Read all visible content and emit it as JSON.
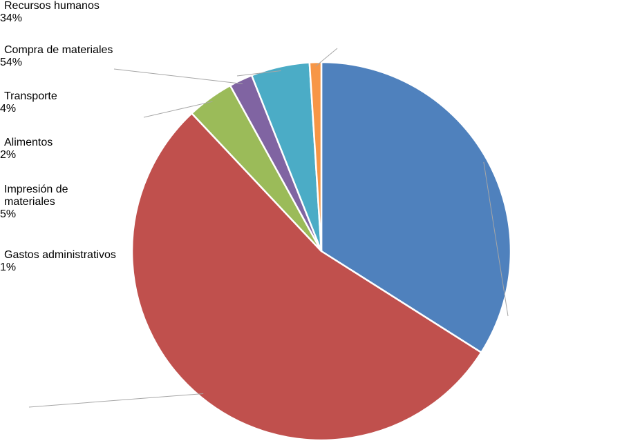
{
  "chart_data": {
    "type": "pie",
    "categories": [
      "Recursos humanos",
      "Compra de materiales",
      "Transporte",
      "Alimentos",
      "Impresión de materiales",
      "Gastos administrativos"
    ],
    "values": [
      34,
      54,
      4,
      2,
      5,
      1
    ],
    "value_labels": [
      "34%",
      "54%",
      "4%",
      "2%",
      "5%",
      "1%"
    ],
    "colors": [
      "#4f81bd",
      "#c0504d",
      "#9bbb59",
      "#8064a2",
      "#4bacc6",
      "#f79646"
    ]
  }
}
